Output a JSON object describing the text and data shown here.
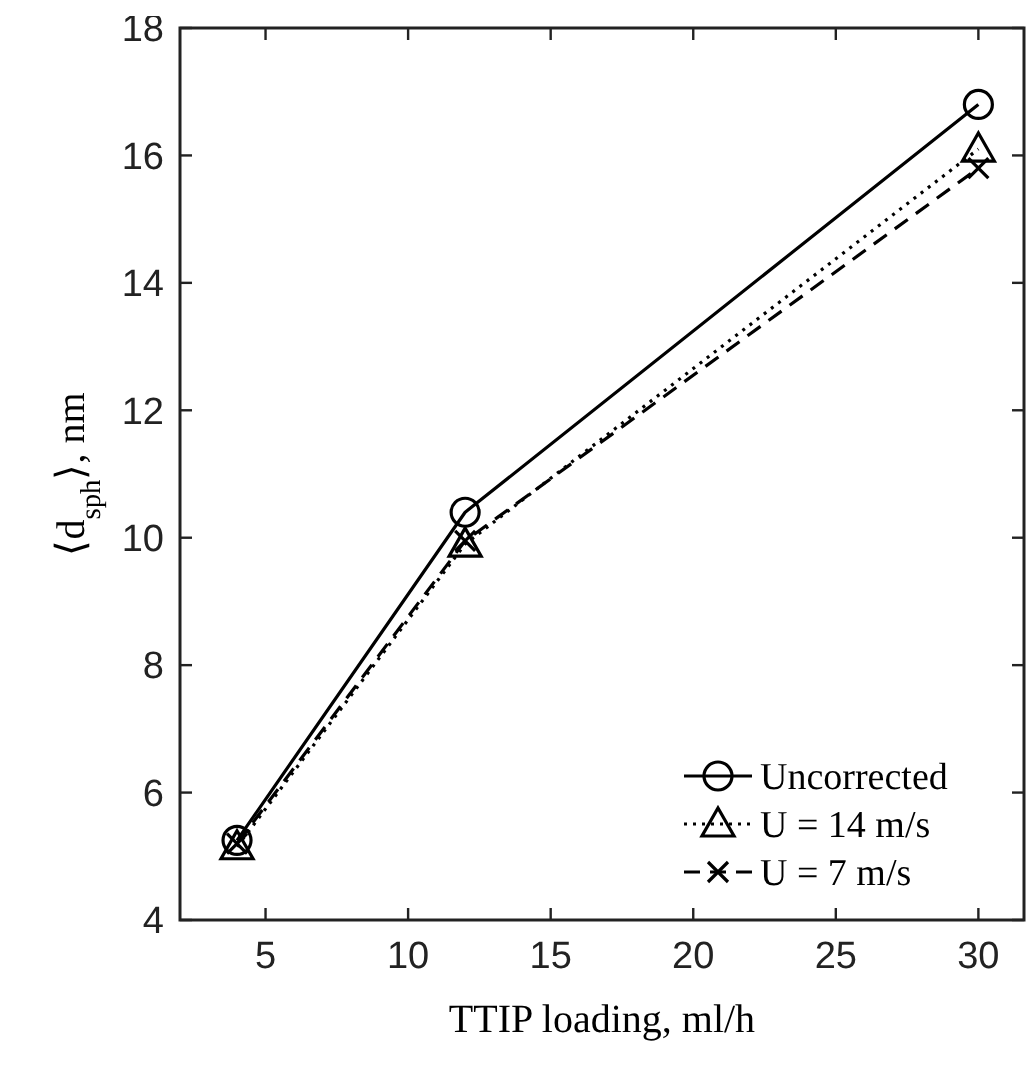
{
  "chart_data": {
    "type": "line",
    "xlabel": "TTIP loading, ml/h",
    "ylabel": "⟨d$_{sph}$⟩, nm",
    "x": [
      4,
      12,
      30
    ],
    "series": [
      {
        "name": "Uncorrected",
        "color": "#000000",
        "values": [
          5.25,
          10.4,
          16.8
        ],
        "marker": "circle",
        "line_style": "solid"
      },
      {
        "name": "U = 14 m/s",
        "color": "#000000",
        "values": [
          5.15,
          9.9,
          16.1
        ],
        "marker": "triangle",
        "line_style": "dotted"
      },
      {
        "name": "U = 7 m/s",
        "color": "#000000",
        "values": [
          5.2,
          9.95,
          15.8
        ],
        "marker": "cross",
        "line_style": "dashed"
      }
    ],
    "xlim": [
      2,
      31.6
    ],
    "xticks": [
      5,
      10,
      15,
      20,
      25,
      30
    ],
    "ylim": [
      4,
      18
    ],
    "yticks": [
      4,
      6,
      8,
      10,
      12,
      14,
      16,
      18
    ],
    "grid": false,
    "legend": "bottom right"
  }
}
